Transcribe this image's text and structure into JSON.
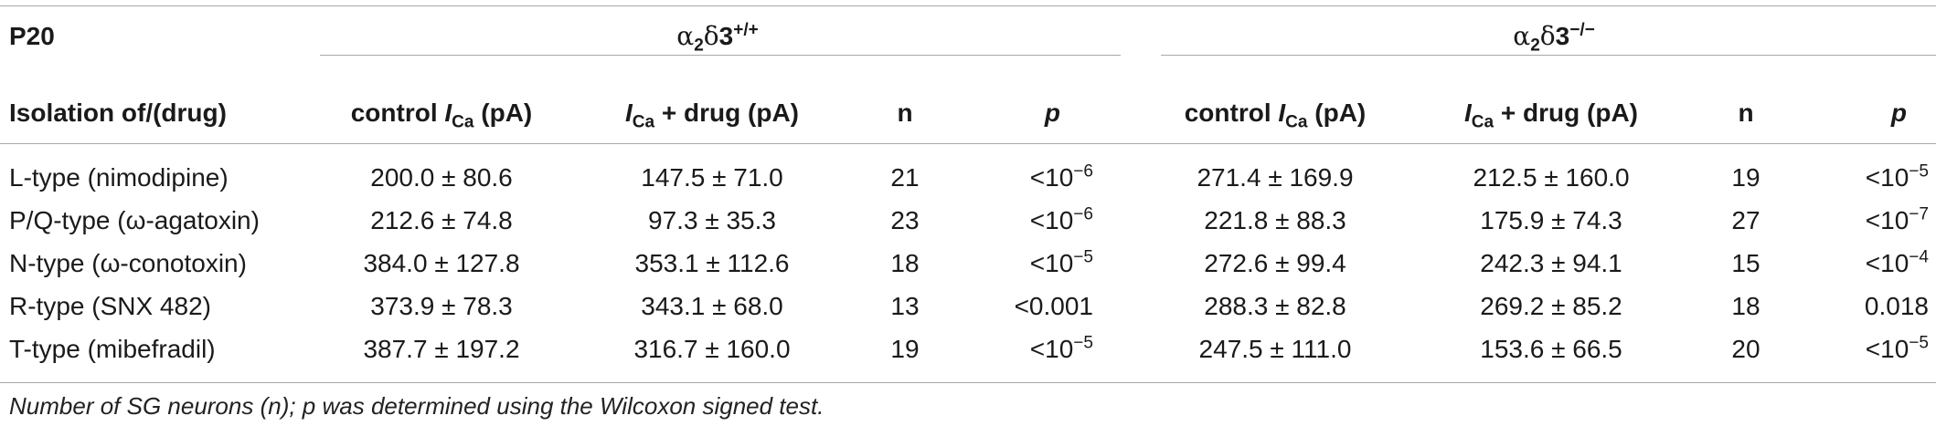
{
  "header": {
    "stage": "P20",
    "group1_label": "α₂δ3⁺/⁺",
    "group2_label": "α₂δ3⁻/⁻",
    "row_header": "Isolation of/(drug)",
    "col_control_prefix": "control ",
    "col_control_I": "I",
    "col_control_sub": "Ca",
    "col_control_suffix": " (pA)",
    "col_drug_I": "I",
    "col_drug_sub": "Ca",
    "col_drug_suffix": " + drug (pA)",
    "col_n": "n",
    "col_p": "p"
  },
  "rows": [
    {
      "label": "L-type (nimodipine)",
      "wt_control": "200.0 ± 80.6",
      "wt_drug": "147.5 ± 71.0",
      "wt_n": "21",
      "wt_p_base": "<10",
      "wt_p_exp": "−6",
      "ko_control": "271.4 ± 169.9",
      "ko_drug": "212.5 ± 160.0",
      "ko_n": "19",
      "ko_p_base": "<10",
      "ko_p_exp": "−5"
    },
    {
      "label": "P/Q-type (ω-agatoxin)",
      "wt_control": "212.6 ± 74.8",
      "wt_drug": "97.3 ± 35.3",
      "wt_n": "23",
      "wt_p_base": "<10",
      "wt_p_exp": "−6",
      "ko_control": "221.8 ± 88.3",
      "ko_drug": "175.9 ± 74.3",
      "ko_n": "27",
      "ko_p_base": "<10",
      "ko_p_exp": "−7"
    },
    {
      "label": "N-type (ω-conotoxin)",
      "wt_control": "384.0 ± 127.8",
      "wt_drug": "353.1 ± 112.6",
      "wt_n": "18",
      "wt_p_base": "<10",
      "wt_p_exp": "−5",
      "ko_control": "272.6 ± 99.4",
      "ko_drug": "242.3 ± 94.1",
      "ko_n": "15",
      "ko_p_base": "<10",
      "ko_p_exp": "−4"
    },
    {
      "label": "R-type (SNX 482)",
      "wt_control": "373.9 ± 78.3",
      "wt_drug": "343.1 ± 68.0",
      "wt_n": "13",
      "wt_p_base": "<0.001",
      "wt_p_exp": "",
      "ko_control": "288.3 ± 82.8",
      "ko_drug": "269.2 ± 85.2",
      "ko_n": "18",
      "ko_p_base": "0.018",
      "ko_p_exp": ""
    },
    {
      "label": "T-type (mibefradil)",
      "wt_control": "387.7 ± 197.2",
      "wt_drug": "316.7 ± 160.0",
      "wt_n": "19",
      "wt_p_base": "<10",
      "wt_p_exp": "−5",
      "ko_control": "247.5 ± 111.0",
      "ko_drug": "153.6 ± 66.5",
      "ko_n": "20",
      "ko_p_base": "<10",
      "ko_p_exp": "−5"
    }
  ],
  "footnote": "Number of SG neurons (n); p was determined using the Wilcoxon signed test."
}
